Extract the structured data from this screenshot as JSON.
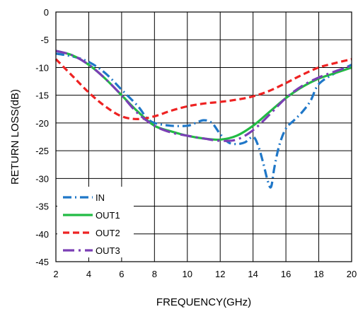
{
  "chart_data": {
    "type": "line",
    "xlabel": "FREQUENCY(GHz)",
    "ylabel": "RETURN LOSS(dB)",
    "xlim": [
      2,
      20
    ],
    "ylim": [
      -45,
      0
    ],
    "x_ticks": [
      "2",
      "4",
      "6",
      "8",
      "10",
      "12",
      "14",
      "16",
      "18",
      "20"
    ],
    "y_ticks": [
      "0",
      "-5",
      "-10",
      "-15",
      "-20",
      "-25",
      "-30",
      "-35",
      "-40",
      "-45"
    ],
    "grid": true,
    "legend_position": "bottom-left",
    "series": [
      {
        "name": "IN",
        "color": "#1f77c8",
        "dash": "dash-dot",
        "x": [
          2,
          3,
          4,
          5,
          6,
          7,
          7.5,
          8,
          9,
          10,
          10.5,
          11,
          11.5,
          12,
          12.5,
          13,
          13.5,
          14,
          14.3,
          14.6,
          14.9,
          15.1,
          15.3,
          15.6,
          16,
          16.5,
          17,
          17.5,
          18,
          19,
          20
        ],
        "y": [
          -7.5,
          -8,
          -9,
          -11,
          -14,
          -17,
          -19,
          -20,
          -20.5,
          -20.5,
          -20,
          -19.5,
          -20,
          -22,
          -23.5,
          -23.8,
          -23.5,
          -22.5,
          -24,
          -27,
          -30.5,
          -31.5,
          -28,
          -24,
          -21,
          -19.5,
          -18,
          -16,
          -13,
          -11,
          -9.5
        ]
      },
      {
        "name": "OUT1",
        "color": "#22bb44",
        "dash": "solid",
        "x": [
          2,
          3,
          4,
          5,
          6,
          7,
          8,
          9,
          10,
          11,
          12,
          13,
          14,
          15,
          16,
          17,
          18,
          19,
          20
        ],
        "y": [
          -7,
          -7.8,
          -9.5,
          -12,
          -15,
          -18,
          -20.5,
          -21.5,
          -22.3,
          -22.8,
          -23,
          -22.3,
          -20.5,
          -18,
          -15.5,
          -13.5,
          -12,
          -11,
          -10
        ]
      },
      {
        "name": "OUT2",
        "color": "#ee2222",
        "dash": "dashed",
        "x": [
          2,
          3,
          4,
          5,
          6,
          7,
          8,
          9,
          10,
          11,
          12,
          13,
          14,
          15,
          16,
          17,
          18,
          19,
          20
        ],
        "y": [
          -8.5,
          -11.5,
          -14.5,
          -17,
          -18.8,
          -19.3,
          -18.8,
          -17.8,
          -17,
          -16.5,
          -16.2,
          -15.8,
          -15.2,
          -14.2,
          -12.8,
          -11.3,
          -10,
          -9.2,
          -8.5
        ]
      },
      {
        "name": "OUT3",
        "color": "#7b3fb5",
        "dash": "long-dash-dot",
        "x": [
          2,
          3,
          4,
          5,
          6,
          7,
          8,
          9,
          10,
          11,
          12,
          13,
          14,
          15,
          16,
          17,
          18,
          19,
          20
        ],
        "y": [
          -7,
          -7.8,
          -9.5,
          -12,
          -15,
          -18.3,
          -20.5,
          -21.7,
          -22.3,
          -22.8,
          -23.2,
          -23,
          -21.3,
          -18.5,
          -15.5,
          -13.3,
          -11.8,
          -10.7,
          -9.7
        ]
      }
    ]
  }
}
